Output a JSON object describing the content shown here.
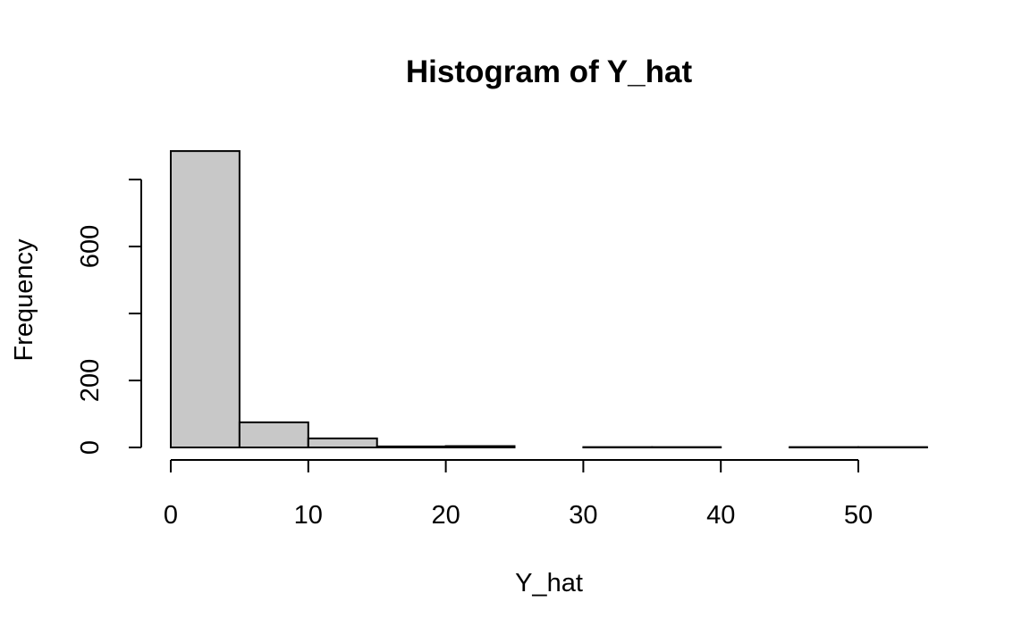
{
  "chart_data": {
    "type": "bar",
    "title": "Histogram of Y_hat",
    "xlabel": "Y_hat",
    "ylabel": "Frequency",
    "bins": [
      {
        "start": 0,
        "end": 5,
        "count": 885
      },
      {
        "start": 5,
        "end": 10,
        "count": 75
      },
      {
        "start": 10,
        "end": 15,
        "count": 27
      },
      {
        "start": 15,
        "end": 20,
        "count": 3
      },
      {
        "start": 20,
        "end": 25,
        "count": 4
      },
      {
        "start": 25,
        "end": 30,
        "count": 0
      },
      {
        "start": 30,
        "end": 35,
        "count": 1
      },
      {
        "start": 35,
        "end": 40,
        "count": 1
      },
      {
        "start": 40,
        "end": 45,
        "count": 0
      },
      {
        "start": 45,
        "end": 50,
        "count": 1
      },
      {
        "start": 50,
        "end": 55,
        "count": 1
      }
    ],
    "xlim": [
      0,
      55
    ],
    "ylim": [
      0,
      885
    ],
    "xticks": [
      0,
      10,
      20,
      30,
      40,
      50
    ],
    "yticks": [
      0,
      200,
      400,
      600,
      800
    ],
    "ytick_labels": [
      "0",
      "200",
      "",
      "600",
      ""
    ],
    "grid": false,
    "colors": {
      "bar_fill": "#c8c8c8",
      "bar_stroke": "#000000"
    }
  }
}
